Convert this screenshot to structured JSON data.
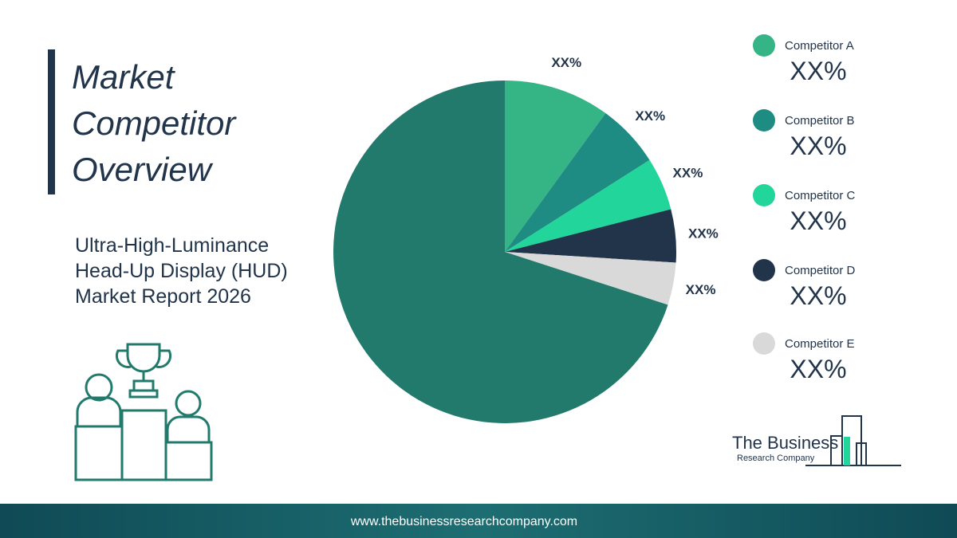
{
  "chart_data": {
    "type": "pie",
    "title": "Market Competitor Overview",
    "subtitle": "Ultra-High-Luminance Head-Up Display (HUD) Market Report 2026",
    "categories": [
      "Competitor A",
      "Competitor B",
      "Competitor C",
      "Competitor D",
      "Competitor E",
      null
    ],
    "values": [
      10,
      6,
      5,
      5,
      4,
      70
    ],
    "value_labels": [
      "XX%",
      "XX%",
      "XX%",
      "XX%",
      "XX%",
      null
    ],
    "colors": [
      "#35b585",
      "#1e8c82",
      "#22d59a",
      "#22344a",
      "#d9d9d9",
      "#217a6b"
    ]
  },
  "logo": {
    "line1": "The Business",
    "line2": "Research Company"
  },
  "footer": {
    "url": "www.thebusinessresearchcompany.com"
  }
}
